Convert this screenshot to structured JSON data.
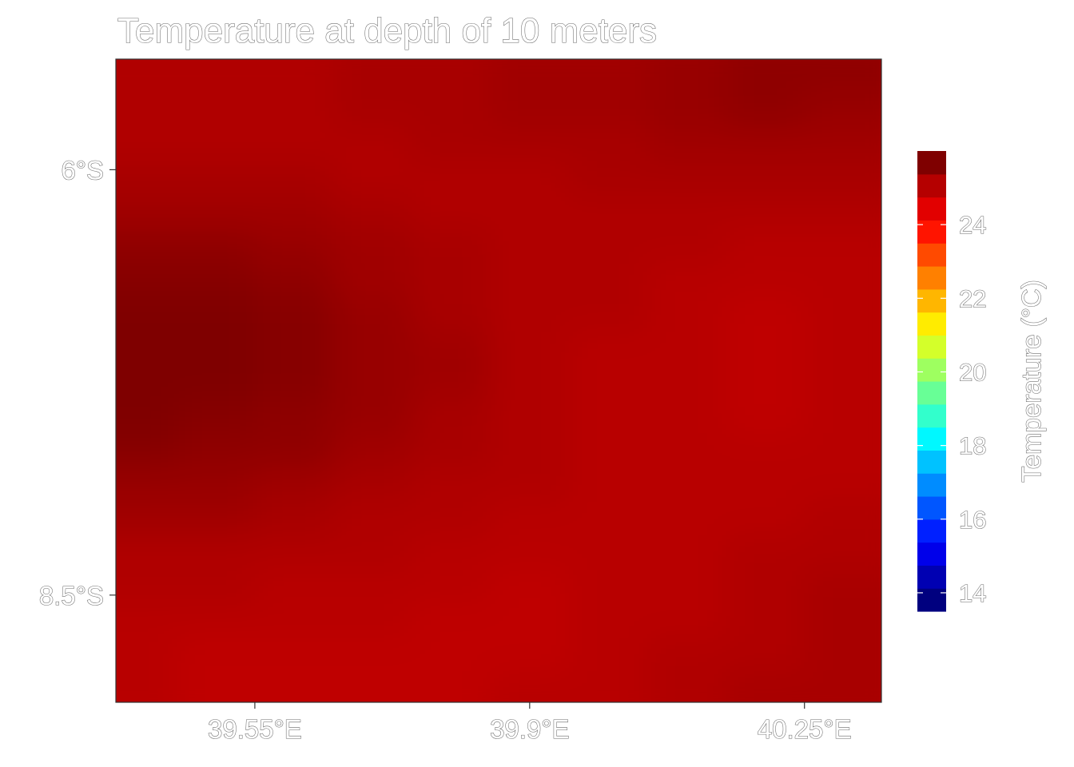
{
  "chart_data": {
    "type": "heatmap",
    "title": "Temperature at depth of 10 meters",
    "x_ticks": [
      {
        "value": 39.55,
        "label": "39.55°E"
      },
      {
        "value": 39.9,
        "label": "39.9°E"
      },
      {
        "value": 40.25,
        "label": "40.25°E"
      }
    ],
    "y_ticks": [
      {
        "value": -6.0,
        "label": "6°S"
      },
      {
        "value": -8.5,
        "label": "8.5°S"
      }
    ],
    "xlim": [
      39.373,
      40.348
    ],
    "ylim": [
      -9.13,
      -5.35
    ],
    "x": [
      39.4,
      39.5,
      39.6,
      39.7,
      39.8,
      39.9,
      40.0,
      40.1,
      40.2,
      40.3
    ],
    "y": [
      -5.45,
      -5.65,
      -5.85,
      -6.05,
      -6.25,
      -6.45,
      -6.65,
      -6.85,
      -7.05,
      -7.25,
      -7.45,
      -7.65,
      -7.85,
      -8.05,
      -8.25,
      -8.45,
      -8.65,
      -8.85,
      -9.05
    ],
    "z": [
      [
        25.4,
        25.4,
        25.4,
        25.5,
        25.5,
        25.6,
        25.6,
        25.7,
        25.8,
        25.8
      ],
      [
        25.4,
        25.4,
        25.4,
        25.5,
        25.5,
        25.6,
        25.6,
        25.7,
        25.8,
        25.7
      ],
      [
        25.4,
        25.4,
        25.4,
        25.4,
        25.5,
        25.5,
        25.5,
        25.6,
        25.6,
        25.6
      ],
      [
        25.5,
        25.5,
        25.5,
        25.4,
        25.4,
        25.4,
        25.5,
        25.5,
        25.5,
        25.5
      ],
      [
        25.6,
        25.6,
        25.6,
        25.5,
        25.4,
        25.4,
        25.4,
        25.4,
        25.4,
        25.4
      ],
      [
        25.8,
        25.8,
        25.7,
        25.6,
        25.5,
        25.4,
        25.4,
        25.4,
        25.3,
        25.3
      ],
      [
        25.9,
        25.9,
        25.8,
        25.6,
        25.5,
        25.4,
        25.4,
        25.3,
        25.3,
        25.3
      ],
      [
        26.0,
        26.0,
        25.9,
        25.7,
        25.5,
        25.4,
        25.4,
        25.3,
        25.2,
        25.3
      ],
      [
        26.0,
        26.0,
        25.9,
        25.7,
        25.6,
        25.4,
        25.3,
        25.3,
        25.2,
        25.3
      ],
      [
        26.0,
        26.0,
        25.9,
        25.7,
        25.6,
        25.4,
        25.3,
        25.3,
        25.2,
        25.3
      ],
      [
        26.0,
        25.9,
        25.8,
        25.7,
        25.5,
        25.4,
        25.3,
        25.3,
        25.2,
        25.3
      ],
      [
        25.9,
        25.8,
        25.8,
        25.6,
        25.5,
        25.4,
        25.3,
        25.3,
        25.3,
        25.3
      ],
      [
        25.7,
        25.7,
        25.6,
        25.5,
        25.4,
        25.4,
        25.3,
        25.3,
        25.3,
        25.3
      ],
      [
        25.6,
        25.6,
        25.5,
        25.4,
        25.4,
        25.3,
        25.3,
        25.3,
        25.3,
        25.4
      ],
      [
        25.4,
        25.4,
        25.4,
        25.4,
        25.3,
        25.3,
        25.3,
        25.3,
        25.4,
        25.4
      ],
      [
        25.4,
        25.4,
        25.3,
        25.3,
        25.3,
        25.2,
        25.3,
        25.3,
        25.4,
        25.5
      ],
      [
        25.3,
        25.3,
        25.3,
        25.3,
        25.2,
        25.2,
        25.3,
        25.3,
        25.4,
        25.5
      ],
      [
        25.3,
        25.2,
        25.2,
        25.2,
        25.2,
        25.2,
        25.3,
        25.4,
        25.4,
        25.5
      ],
      [
        25.3,
        25.2,
        25.2,
        25.2,
        25.2,
        25.3,
        25.3,
        25.4,
        25.5,
        25.5
      ]
    ],
    "legend": {
      "title": "Temperature (°C)",
      "placement": "right",
      "range": [
        13.5,
        26.0
      ],
      "ticks": [
        14,
        16,
        18,
        20,
        22,
        24
      ],
      "colors": [
        "#00007f",
        "#0000b2",
        "#0000ea",
        "#0020ff",
        "#0056ff",
        "#008cff",
        "#00c2ff",
        "#00f8ff",
        "#32ffcc",
        "#68ff96",
        "#9eff60",
        "#d4ff2a",
        "#ffec00",
        "#ffb600",
        "#ff8000",
        "#ff4a00",
        "#ff1400",
        "#e20000",
        "#b50000",
        "#7f0000"
      ]
    },
    "grid": false
  }
}
